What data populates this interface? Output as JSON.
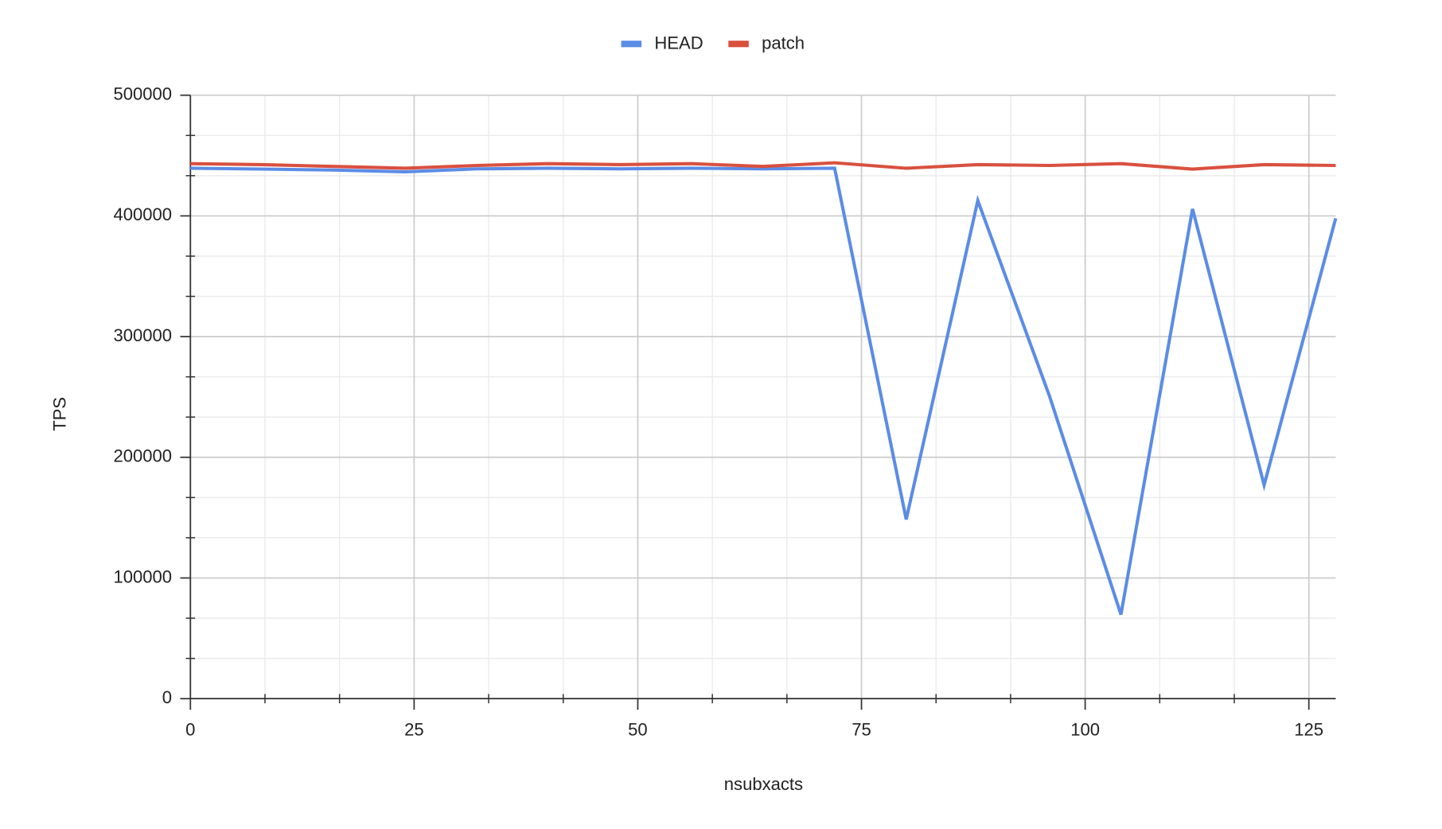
{
  "chart_data": {
    "type": "line",
    "x_label": "nsubxacts",
    "y_label": "TPS",
    "x": [
      0,
      8,
      16,
      24,
      32,
      40,
      48,
      56,
      64,
      72,
      80,
      88,
      96,
      104,
      112,
      120,
      128
    ],
    "series": [
      {
        "name": "HEAD",
        "color": "#5b8ce6",
        "values": [
          439500,
          438800,
          438000,
          436500,
          439000,
          439500,
          439000,
          439500,
          439000,
          439500,
          148500,
          412700,
          251000,
          69700,
          405800,
          177000,
          398000
        ]
      },
      {
        "name": "patch",
        "color": "#d9503f",
        "values": [
          443300,
          442500,
          441000,
          439500,
          441800,
          443300,
          442500,
          443300,
          441000,
          444000,
          439500,
          442500,
          441800,
          443300,
          438800,
          442500,
          441800
        ]
      }
    ],
    "xlim": [
      0,
      128
    ],
    "xticks": [
      0,
      25,
      50,
      75,
      100,
      125
    ],
    "ylim": [
      0,
      500000
    ],
    "yticks": [
      0,
      100000,
      200000,
      300000,
      400000,
      500000
    ],
    "grid": true,
    "legend": "top"
  }
}
